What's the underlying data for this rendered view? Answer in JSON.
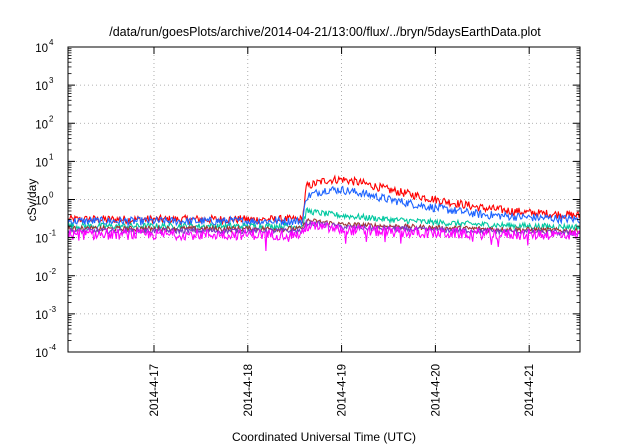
{
  "chart_data": {
    "type": "line",
    "title": "/data/run/goesPlots/archive/2014-04-21/13:00/flux/../bryn/5daysEarthData.plot",
    "xlabel": "Coordinated Universal Time (UTC)",
    "ylabel": "cSv/day",
    "x_range_days": [
      "2014-04-16T02:00",
      "2014-04-21T13:00"
    ],
    "xticks": [
      "2014-4-17",
      "2014-4-18",
      "2014-4-19",
      "2014-4-20",
      "2014-4-21"
    ],
    "xtick_positions": [
      "2014-04-17T00:00",
      "2014-04-18T00:00",
      "2014-04-19T00:00",
      "2014-04-20T00:00",
      "2014-04-21T00:00"
    ],
    "yscale": "log",
    "ylim": [
      0.0001,
      10000
    ],
    "yticks": [
      {
        "base": "10",
        "exp": "-4"
      },
      {
        "base": "10",
        "exp": "-3"
      },
      {
        "base": "10",
        "exp": "-2"
      },
      {
        "base": "10",
        "exp": "-1"
      },
      {
        "base": "10",
        "exp": "0"
      },
      {
        "base": "10",
        "exp": "1"
      },
      {
        "base": "10",
        "exp": "2"
      },
      {
        "base": "10",
        "exp": "3"
      },
      {
        "base": "10",
        "exp": "4"
      }
    ],
    "grid": true,
    "series": [
      {
        "color": "#ff0000",
        "values": [
          [
            "2014-04-16T02:00",
            0.3
          ],
          [
            "2014-04-17T00:00",
            0.3
          ],
          [
            "2014-04-18T00:00",
            0.3
          ],
          [
            "2014-04-18T14:00",
            0.3
          ],
          [
            "2014-04-18T15:00",
            2.2
          ],
          [
            "2014-04-18T20:00",
            3.2
          ],
          [
            "2014-04-19T00:00",
            3.4
          ],
          [
            "2014-04-19T06:00",
            2.6
          ],
          [
            "2014-04-19T12:00",
            1.8
          ],
          [
            "2014-04-20T00:00",
            1.0
          ],
          [
            "2014-04-20T12:00",
            0.6
          ],
          [
            "2014-04-21T00:00",
            0.45
          ],
          [
            "2014-04-21T13:00",
            0.38
          ]
        ]
      },
      {
        "color": "#1e64ff",
        "values": [
          [
            "2014-04-16T02:00",
            0.27
          ],
          [
            "2014-04-17T00:00",
            0.27
          ],
          [
            "2014-04-18T00:00",
            0.27
          ],
          [
            "2014-04-18T14:00",
            0.27
          ],
          [
            "2014-04-18T15:00",
            1.2
          ],
          [
            "2014-04-18T20:00",
            1.8
          ],
          [
            "2014-04-19T00:00",
            1.8
          ],
          [
            "2014-04-19T06:00",
            1.4
          ],
          [
            "2014-04-19T12:00",
            1.0
          ],
          [
            "2014-04-20T00:00",
            0.6
          ],
          [
            "2014-04-20T12:00",
            0.4
          ],
          [
            "2014-04-21T00:00",
            0.34
          ],
          [
            "2014-04-21T13:00",
            0.3
          ]
        ]
      },
      {
        "color": "#00c8a0",
        "values": [
          [
            "2014-04-16T02:00",
            0.2
          ],
          [
            "2014-04-17T00:00",
            0.2
          ],
          [
            "2014-04-18T00:00",
            0.2
          ],
          [
            "2014-04-18T14:00",
            0.2
          ],
          [
            "2014-04-18T15:00",
            0.5
          ],
          [
            "2014-04-18T20:00",
            0.42
          ],
          [
            "2014-04-19T00:00",
            0.38
          ],
          [
            "2014-04-19T12:00",
            0.3
          ],
          [
            "2014-04-20T00:00",
            0.25
          ],
          [
            "2014-04-20T12:00",
            0.22
          ],
          [
            "2014-04-21T00:00",
            0.2
          ],
          [
            "2014-04-21T13:00",
            0.19
          ]
        ]
      },
      {
        "color": "#a03232",
        "values": [
          [
            "2014-04-16T02:00",
            0.17
          ],
          [
            "2014-04-17T00:00",
            0.17
          ],
          [
            "2014-04-18T00:00",
            0.17
          ],
          [
            "2014-04-18T14:00",
            0.17
          ],
          [
            "2014-04-18T15:00",
            0.28
          ],
          [
            "2014-04-18T20:00",
            0.25
          ],
          [
            "2014-04-19T00:00",
            0.22
          ],
          [
            "2014-04-19T12:00",
            0.2
          ],
          [
            "2014-04-20T00:00",
            0.18
          ],
          [
            "2014-04-21T00:00",
            0.16
          ],
          [
            "2014-04-21T13:00",
            0.15
          ]
        ]
      },
      {
        "color": "#7a3cc8",
        "values": [
          [
            "2014-04-16T02:00",
            0.15
          ],
          [
            "2014-04-17T00:00",
            0.15
          ],
          [
            "2014-04-18T00:00",
            0.15
          ],
          [
            "2014-04-18T14:00",
            0.15
          ],
          [
            "2014-04-18T15:00",
            0.24
          ],
          [
            "2014-04-18T20:00",
            0.22
          ],
          [
            "2014-04-19T00:00",
            0.19
          ],
          [
            "2014-04-19T12:00",
            0.17
          ],
          [
            "2014-04-20T00:00",
            0.16
          ],
          [
            "2014-04-21T00:00",
            0.14
          ],
          [
            "2014-04-21T13:00",
            0.13
          ]
        ]
      },
      {
        "color": "#ff00ff",
        "values": [
          [
            "2014-04-16T02:00",
            0.12
          ],
          [
            "2014-04-17T00:00",
            0.12
          ],
          [
            "2014-04-18T00:00",
            0.12
          ],
          [
            "2014-04-18T14:00",
            0.12
          ],
          [
            "2014-04-18T15:00",
            0.2
          ],
          [
            "2014-04-18T20:00",
            0.18
          ],
          [
            "2014-04-19T00:00",
            0.16
          ],
          [
            "2014-04-19T12:00",
            0.14
          ],
          [
            "2014-04-20T00:00",
            0.13
          ],
          [
            "2014-04-21T00:00",
            0.12
          ],
          [
            "2014-04-21T13:00",
            0.12
          ]
        ]
      }
    ]
  }
}
